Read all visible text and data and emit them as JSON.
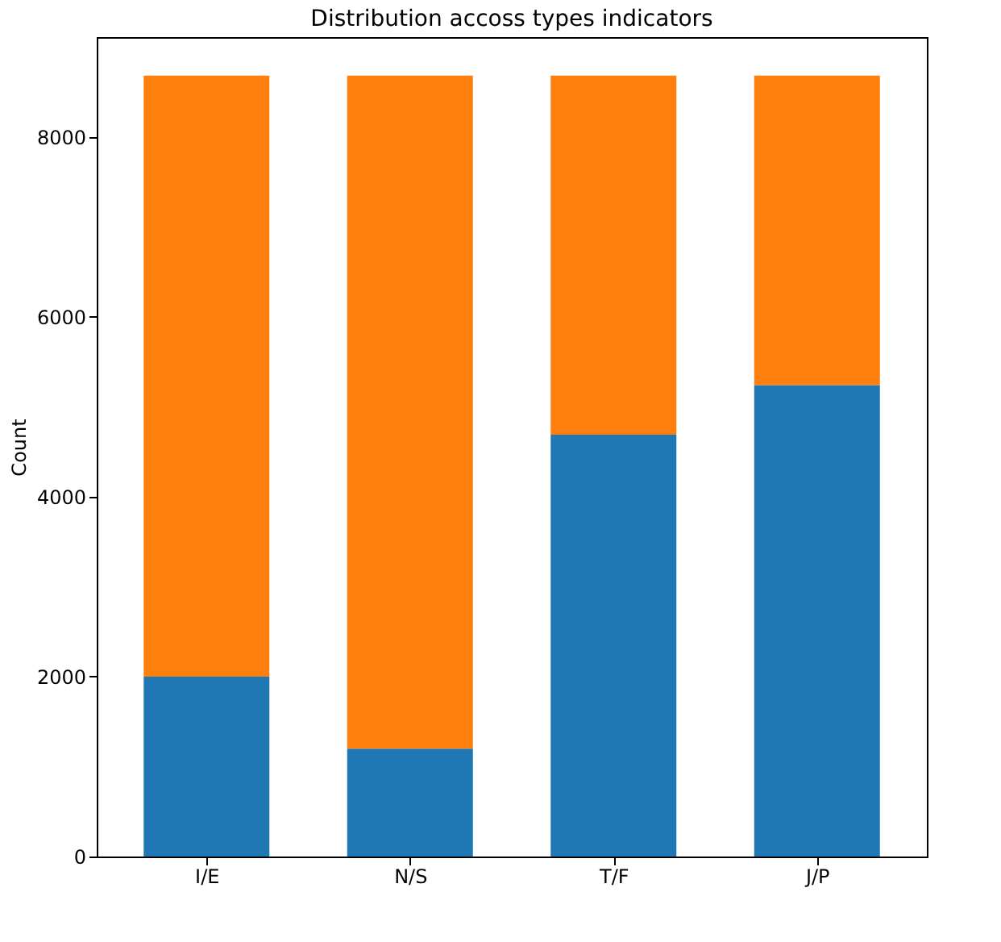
{
  "chart_data": {
    "type": "bar",
    "title": "Distribution accoss types indicators",
    "ylabel": "Count",
    "categories": [
      "I/E",
      "N/S",
      "T/F",
      "J/P"
    ],
    "stacked": true,
    "series": [
      {
        "color": "#1f77b4",
        "values": [
          2000,
          1200,
          4690,
          5240
        ]
      },
      {
        "color": "#ff7f0e",
        "values": [
          6680,
          7480,
          3990,
          3440
        ]
      }
    ],
    "ylim": [
      0,
      9109
    ],
    "yticks": [
      0,
      2000,
      4000,
      6000,
      8000
    ],
    "grid": false,
    "legend": false
  }
}
